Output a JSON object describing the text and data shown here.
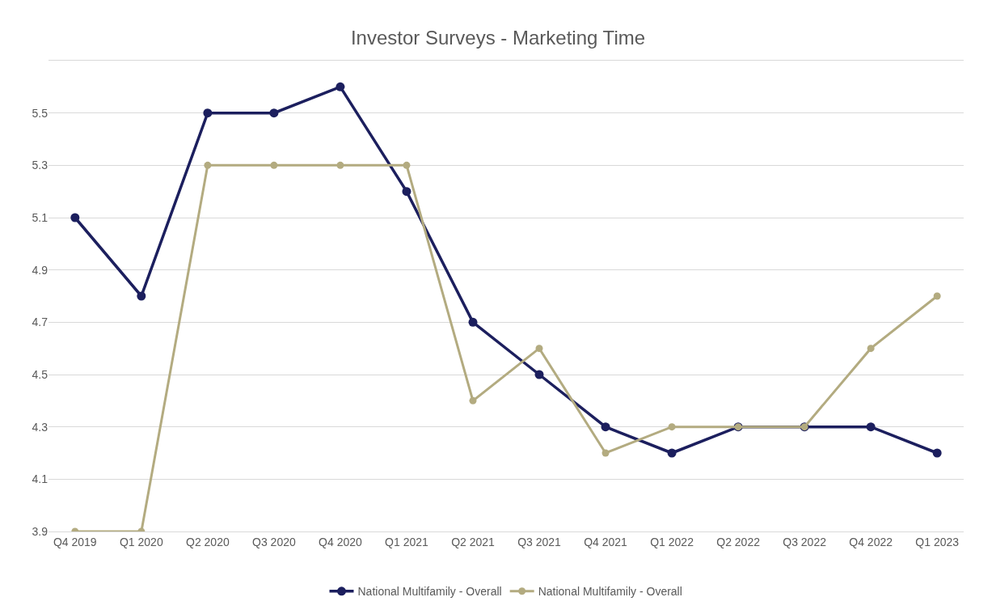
{
  "chart_data": {
    "type": "line",
    "title": "Investor Surveys - Marketing Time",
    "categories": [
      "Q4 2019",
      "Q1 2020",
      "Q2 2020",
      "Q3 2020",
      "Q4 2020",
      "Q1 2021",
      "Q2 2021",
      "Q3 2021",
      "Q4 2021",
      "Q1 2022",
      "Q2 2022",
      "Q3 2022",
      "Q4 2022",
      "Q1 2023"
    ],
    "series": [
      {
        "name": "National Multifamily - Overall",
        "color": "#1c1f5e",
        "values": [
          5.1,
          4.8,
          5.5,
          5.5,
          5.6,
          5.2,
          4.7,
          4.5,
          4.3,
          4.2,
          4.3,
          4.3,
          4.3,
          4.2
        ]
      },
      {
        "name": "National Multifamily - Overall",
        "color": "#b3ab80",
        "values": [
          3.9,
          3.9,
          5.3,
          5.3,
          5.3,
          5.3,
          4.4,
          4.6,
          4.2,
          4.3,
          4.3,
          4.3,
          4.6,
          4.8
        ]
      }
    ],
    "ylim": [
      3.9,
      5.7
    ],
    "yticks": [
      3.9,
      4.1,
      4.3,
      4.5,
      4.7,
      4.9,
      5.1,
      5.3,
      5.5
    ],
    "grid": "y",
    "legend": "bottom",
    "marker": "circle",
    "line_style": "solid"
  }
}
